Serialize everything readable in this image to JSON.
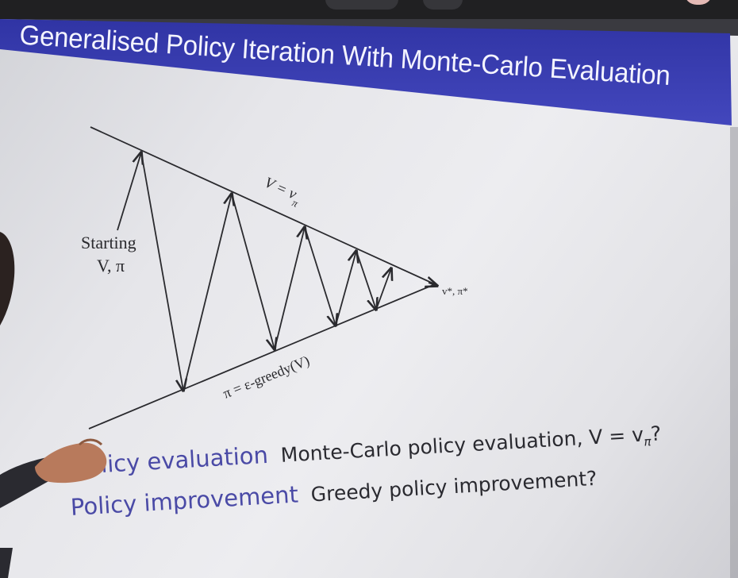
{
  "slide": {
    "title": "Generalised Policy Iteration With Monte-Carlo Evaluation",
    "diagram": {
      "start_label_line1": "Starting",
      "start_label_line2": "V, π",
      "top_line_label": "V = v",
      "top_line_subscript": "π",
      "bottom_line_label": "π = ε-greedy(V)",
      "apex_label": "v*, π*"
    },
    "rows": [
      {
        "term": "Policy evaluation",
        "description": "Monte-Carlo policy evaluation, V = v",
        "description_subscript": "π",
        "description_suffix": "?"
      },
      {
        "term": "Policy improvement",
        "description": "Greedy policy improvement?"
      }
    ]
  },
  "colors": {
    "title_band": "#3b3fb0",
    "term_text": "#4a4aa6",
    "body_text": "#2a2a30"
  }
}
